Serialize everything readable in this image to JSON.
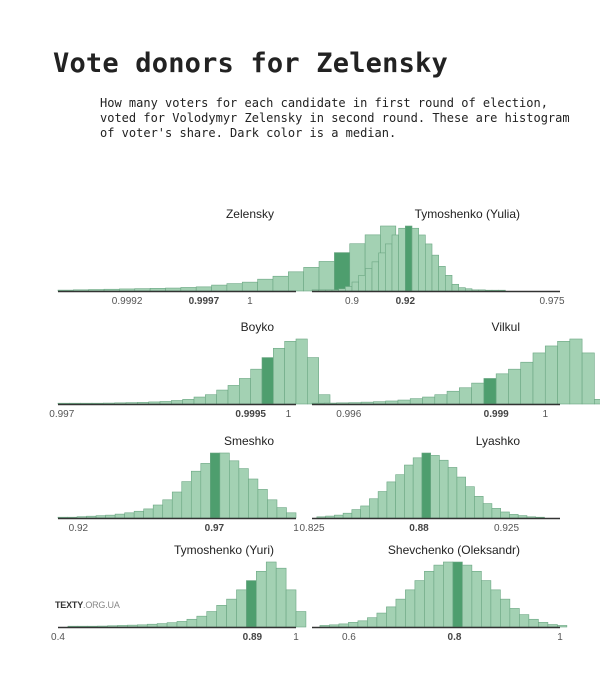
{
  "header": {
    "title": "Vote donors for Zelensky",
    "subtitle": "How many voters for each candidate in first round of election,\nvoted for Volodymyr Zelensky in second round. These are histogram\nof voter's share. Dark color is a median."
  },
  "brand": {
    "name_bold": "TEXTY",
    "name_light": ".ORG.UA"
  },
  "colors": {
    "bar": "#a3d1b3",
    "bar_stroke": "#6aa682",
    "median_bar": "#4e9e6e",
    "axis": "#333333"
  },
  "chart_data": [
    {
      "type": "bar",
      "title": "Zelensky",
      "ticks": [
        "0.9992",
        "0.9997",
        "1"
      ],
      "tick_positions": [
        0.9992,
        0.9997,
        1.0
      ],
      "median_label": "0.9997",
      "x_domain": [
        0.99875,
        1.0003
      ],
      "bin_start": 0.99875,
      "bin_width": 0.0001,
      "median_bin": 18,
      "values": [
        0.3,
        0.4,
        0.5,
        0.6,
        0.7,
        0.8,
        0.9,
        1.0,
        1.2,
        1.4,
        2,
        2.5,
        3,
        4,
        5,
        6.5,
        8,
        10,
        13,
        16,
        19,
        22,
        14,
        7
      ]
    },
    {
      "type": "bar",
      "title": "Tymoshenko (Yulia)",
      "ticks": [
        "0.9",
        "0.92",
        "0.975"
      ],
      "tick_positions": [
        0.9,
        0.92,
        0.975
      ],
      "median_label": "0.92",
      "x_domain": [
        0.885,
        0.978
      ],
      "bin_start": 0.885,
      "bin_width": 0.0025,
      "median_bin": 14,
      "values": [
        0.5,
        0.5,
        0.5,
        0.5,
        1,
        2,
        4,
        7,
        10,
        13,
        17,
        21,
        25,
        28,
        29,
        28,
        25,
        21,
        16,
        11,
        7,
        3,
        1.5,
        1,
        0.5,
        0.5,
        0.3,
        0.2,
        0.2
      ]
    },
    {
      "type": "bar",
      "title": "Boyko",
      "ticks": [
        "0.997",
        "0.9995",
        "1"
      ],
      "tick_positions": [
        0.997,
        0.9995,
        1.0
      ],
      "median_label": "0.9995",
      "x_domain": [
        0.99695,
        1.0001
      ],
      "bin_start": 0.99695,
      "bin_width": 0.00015,
      "median_bin": 18,
      "values": [
        0.1,
        0.1,
        0.2,
        0.3,
        0.4,
        0.5,
        0.6,
        0.7,
        0.9,
        1.1,
        1.5,
        2,
        3,
        4,
        6,
        8,
        11,
        15,
        20,
        24,
        27,
        28,
        20,
        4
      ]
    },
    {
      "type": "bar",
      "title": "Vilkul",
      "ticks": [
        "0.996",
        "0.999",
        "1"
      ],
      "tick_positions": [
        0.996,
        0.999,
        1.0
      ],
      "median_label": "0.999",
      "x_domain": [
        0.99525,
        1.0003
      ],
      "bin_start": 0.99525,
      "bin_width": 0.00025,
      "median_bin": 14,
      "values": [
        0.3,
        0.4,
        0.5,
        0.6,
        0.8,
        1.0,
        1.3,
        1.7,
        2.3,
        3,
        4,
        5.5,
        7,
        9,
        11,
        13,
        15,
        18,
        22,
        25,
        27,
        28,
        22,
        2
      ]
    },
    {
      "type": "bar",
      "title": "Smeshko",
      "ticks": [
        "0.92",
        "0.97",
        "1"
      ],
      "tick_positions": [
        0.92,
        0.97,
        1.0
      ],
      "median_label": "0.97",
      "x_domain": [
        0.9125,
        1.0
      ],
      "bin_start": 0.9125,
      "bin_width": 0.0035,
      "median_bin": 16,
      "values": [
        0.2,
        0.3,
        0.5,
        0.7,
        0.9,
        1.1,
        1.5,
        2,
        2.6,
        3.5,
        5,
        7,
        10,
        14,
        18,
        21,
        25,
        25,
        22,
        19,
        15,
        11,
        7,
        4,
        2
      ]
    },
    {
      "type": "bar",
      "title": "Lyashko",
      "ticks": [
        "0.825",
        "0.88",
        "0.925"
      ],
      "tick_positions": [
        0.825,
        0.88,
        0.925
      ],
      "median_label": "0.88",
      "x_domain": [
        0.825,
        0.9525
      ],
      "bin_start": 0.8275,
      "bin_width": 0.0045,
      "median_bin": 12,
      "values": [
        0.5,
        0.8,
        1.2,
        2,
        3.5,
        5,
        8,
        11,
        15,
        18,
        22,
        25,
        27,
        26,
        24,
        21,
        17,
        13,
        9,
        6,
        4,
        2.5,
        1.5,
        1,
        0.5,
        0.3
      ]
    },
    {
      "type": "bar",
      "title": "Tymoshenko (Yuri)",
      "ticks": [
        "0.4",
        "0.89",
        "1"
      ],
      "tick_positions": [
        0.4,
        0.89,
        1.0
      ],
      "median_label": "0.89",
      "x_domain": [
        0.4,
        1.0
      ],
      "bin_start": 0.425,
      "bin_width": 0.025,
      "median_bin": 18,
      "values": [
        0.1,
        0.1,
        0.2,
        0.3,
        0.4,
        0.5,
        0.6,
        0.7,
        0.9,
        1.1,
        1.4,
        1.8,
        2.5,
        3.5,
        5,
        7,
        9,
        12,
        15,
        18,
        21,
        19,
        12,
        5
      ]
    },
    {
      "type": "bar",
      "title": "Shevchenko (Oleksandr)",
      "ticks": [
        "0.6",
        "0.8",
        "1"
      ],
      "tick_positions": [
        0.6,
        0.8,
        1.0
      ],
      "median_label": "0.8",
      "x_domain": [
        0.53,
        1.0
      ],
      "bin_start": 0.545,
      "bin_width": 0.018,
      "median_bin": 14,
      "values": [
        0.5,
        0.7,
        1,
        1.5,
        2,
        3,
        4.5,
        6.5,
        9,
        12,
        15,
        18,
        20,
        21,
        21,
        20,
        18,
        15,
        12,
        9,
        6,
        4,
        2.5,
        1.5,
        0.8,
        0.5
      ]
    }
  ]
}
